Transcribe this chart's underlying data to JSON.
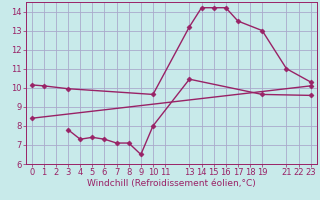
{
  "background_color": "#c8eaea",
  "grid_color": "#aaaacc",
  "line_color": "#992266",
  "xlim": [
    -0.5,
    23.5
  ],
  "ylim": [
    6,
    14.5
  ],
  "xticks": [
    0,
    1,
    2,
    3,
    4,
    5,
    6,
    7,
    8,
    9,
    10,
    11,
    13,
    14,
    15,
    16,
    17,
    18,
    19,
    21,
    22,
    23
  ],
  "yticks": [
    6,
    7,
    8,
    9,
    10,
    11,
    12,
    13,
    14
  ],
  "series1_x": [
    0,
    1,
    3,
    10,
    13,
    14,
    15,
    16,
    17,
    19,
    21,
    23
  ],
  "series1_y": [
    10.15,
    10.1,
    9.95,
    9.65,
    13.2,
    14.2,
    14.2,
    14.2,
    13.5,
    13.0,
    11.0,
    10.3
  ],
  "series2_x": [
    3,
    4,
    5,
    6,
    7,
    8,
    9,
    10,
    13,
    19,
    23
  ],
  "series2_y": [
    7.8,
    7.3,
    7.4,
    7.3,
    7.1,
    7.1,
    6.5,
    8.0,
    10.45,
    9.65,
    9.6
  ],
  "series3_x": [
    0,
    23
  ],
  "series3_y": [
    8.4,
    10.1
  ],
  "xlabel": "Windchill (Refroidissement éolien,°C)",
  "marker": "D",
  "markersize": 2.5,
  "linewidth": 1.0,
  "fontsize_label": 6.5,
  "fontsize_tick": 6.0
}
